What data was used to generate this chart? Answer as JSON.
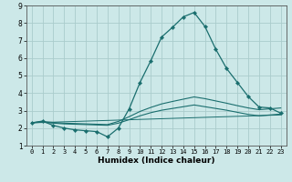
{
  "title": "",
  "xlabel": "Humidex (Indice chaleur)",
  "ylabel": "",
  "background_color": "#cce8e8",
  "grid_color": "#aacccc",
  "line_color": "#1a6e6e",
  "xlim": [
    -0.5,
    23.5
  ],
  "ylim": [
    1,
    9
  ],
  "xticks": [
    0,
    1,
    2,
    3,
    4,
    5,
    6,
    7,
    8,
    9,
    10,
    11,
    12,
    13,
    14,
    15,
    16,
    17,
    18,
    19,
    20,
    21,
    22,
    23
  ],
  "yticks": [
    1,
    2,
    3,
    4,
    5,
    6,
    7,
    8,
    9
  ],
  "series_main": {
    "x": [
      0,
      1,
      2,
      3,
      4,
      5,
      6,
      7,
      8,
      9,
      10,
      11,
      12,
      13,
      14,
      15,
      16,
      17,
      18,
      19,
      20,
      21,
      22,
      23
    ],
    "y": [
      2.3,
      2.4,
      2.15,
      2.0,
      1.9,
      1.85,
      1.8,
      1.5,
      2.0,
      3.1,
      4.6,
      5.85,
      7.2,
      7.75,
      8.35,
      8.6,
      7.8,
      6.5,
      5.4,
      4.6,
      3.8,
      3.2,
      3.15,
      2.85
    ]
  },
  "series_upper": {
    "x": [
      0,
      1,
      2,
      3,
      4,
      5,
      6,
      7,
      8,
      9,
      10,
      11,
      12,
      13,
      14,
      15,
      16,
      17,
      18,
      19,
      20,
      21,
      22,
      23
    ],
    "y": [
      2.3,
      2.38,
      2.32,
      2.28,
      2.26,
      2.24,
      2.22,
      2.2,
      2.38,
      2.65,
      2.95,
      3.18,
      3.38,
      3.52,
      3.65,
      3.78,
      3.68,
      3.55,
      3.42,
      3.28,
      3.15,
      3.05,
      3.1,
      3.15
    ]
  },
  "series_lower": {
    "x": [
      0,
      1,
      2,
      3,
      4,
      5,
      6,
      7,
      8,
      9,
      10,
      11,
      12,
      13,
      14,
      15,
      16,
      17,
      18,
      19,
      20,
      21,
      22,
      23
    ],
    "y": [
      2.3,
      2.34,
      2.28,
      2.24,
      2.22,
      2.2,
      2.18,
      2.16,
      2.28,
      2.48,
      2.7,
      2.88,
      3.02,
      3.12,
      3.22,
      3.32,
      3.22,
      3.12,
      3.02,
      2.9,
      2.78,
      2.7,
      2.75,
      2.8
    ]
  },
  "series_trend": {
    "x": [
      0,
      23
    ],
    "y": [
      2.3,
      2.75
    ]
  }
}
